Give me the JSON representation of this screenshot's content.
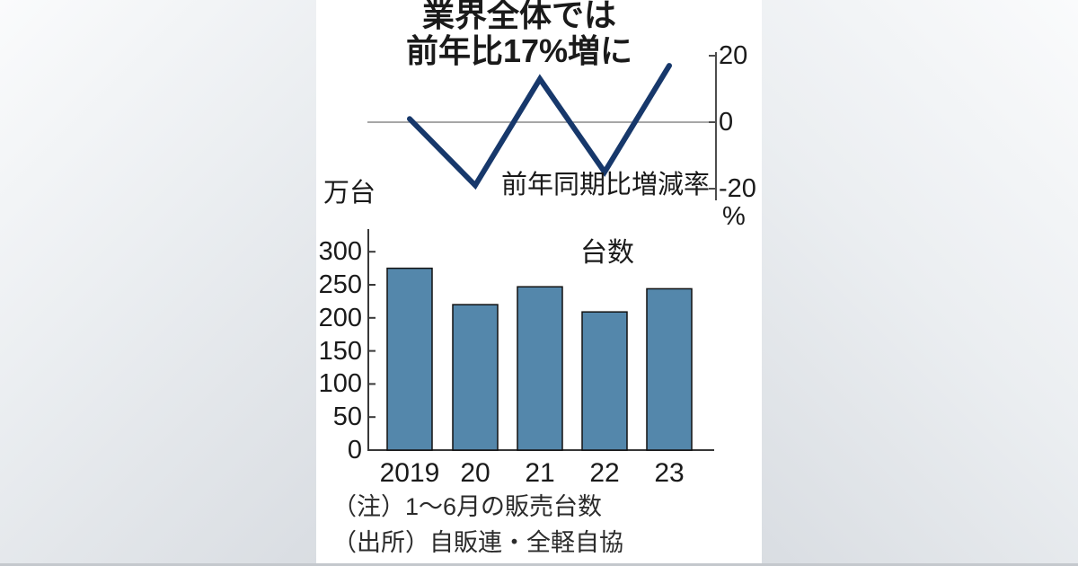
{
  "title": {
    "line1": "業界全体では",
    "line2": "前年比17%増に"
  },
  "chart_data": [
    {
      "type": "line",
      "name": "yoy-change-rate-line",
      "title": "前年同期比増減率",
      "unit_label": "%",
      "categories": [
        "2019",
        "20",
        "21",
        "22",
        "23"
      ],
      "values": [
        1,
        -19,
        13,
        -15,
        17
      ],
      "yticks": [
        20,
        0,
        -20
      ],
      "ylim": [
        -22,
        22
      ],
      "axis_side": "right",
      "zero_line": true,
      "line_color": "#17386b"
    },
    {
      "type": "bar",
      "name": "sales-volume-bars",
      "title": "台数",
      "unit_label": "万台",
      "categories": [
        "2019",
        "20",
        "21",
        "22",
        "23"
      ],
      "values": [
        275,
        220,
        247,
        209,
        244
      ],
      "yticks": [
        300,
        250,
        200,
        150,
        100,
        50,
        0
      ],
      "ylim": [
        0,
        320
      ],
      "axis_side": "left",
      "bar_color": "#5487ab",
      "bar_border": "#111111"
    }
  ],
  "notes": {
    "note": "（注）1〜6月の販売台数",
    "source": "（出所）自販連・全軽自協"
  },
  "colors": {
    "line": "#17386b",
    "bar_fill": "#5487ab",
    "axis": "#404040",
    "zero_gridline": "#8a8a8a",
    "background_light": "#fafbfc",
    "background_dark": "#d9dde2"
  }
}
